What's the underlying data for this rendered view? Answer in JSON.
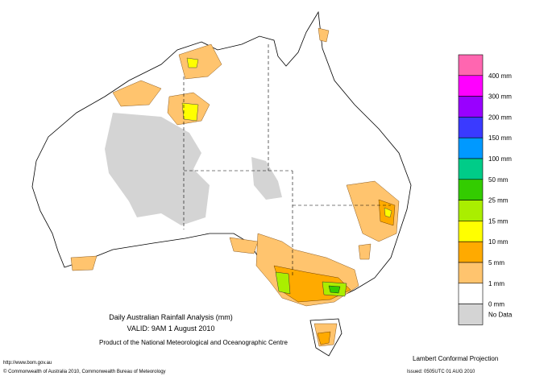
{
  "map": {
    "title": "Daily Australian Rainfall Analysis (mm)",
    "valid": "VALID: 9AM  1 August 2010",
    "product": "Product of the National Meteorological and Oceanographic Centre",
    "url": "http://www.bom.gov.au",
    "copyright": "© Commonwealth of Australia 2010, Commonwealth Bureau of Meteorology",
    "projection": "Lambert Conformal Projection",
    "issued": "Issued: 0505UTC 01 AUG 2010"
  },
  "legend": {
    "colors": [
      "#ff66b0",
      "#ff00ff",
      "#9900ff",
      "#3a3aff",
      "#0099ff",
      "#00cc88",
      "#33cc00",
      "#aaee00",
      "#ffff00",
      "#ffaa00",
      "#ffc46e",
      "#ffffff",
      "#d4d4d4"
    ],
    "labels": [
      "400 mm",
      "300 mm",
      "200 mm",
      "150 mm",
      "100 mm",
      "50 mm",
      "25 mm",
      "15 mm",
      "10 mm",
      "5 mm",
      "1 mm",
      "0 mm",
      "No Data"
    ]
  }
}
